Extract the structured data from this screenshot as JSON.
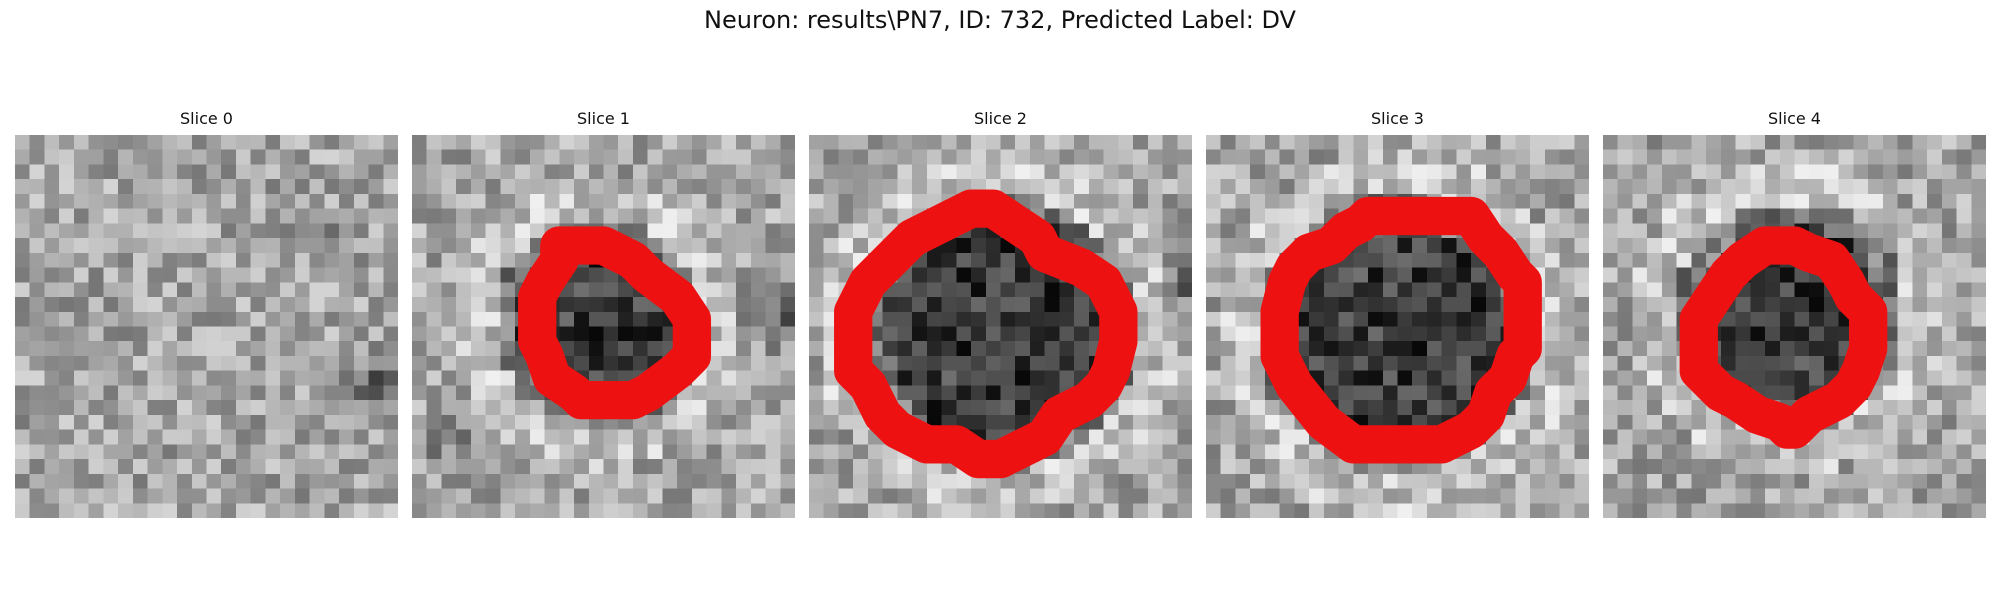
{
  "figure": {
    "title": "Neuron: results\\PN7, ID: 732, Predicted Label: DV"
  },
  "colors": {
    "contour": "#ee1111",
    "colormap": "gray"
  },
  "grid_size": 26,
  "slices": [
    {
      "title": "Slice 0",
      "has_contour": false,
      "blob": null,
      "vdark": [
        {
          "x": 20.4,
          "y": 6.6,
          "r": 1.4
        },
        {
          "x": 24.5,
          "y": 17,
          "r": 3
        }
      ],
      "contour": []
    },
    {
      "title": "Slice 1",
      "has_contour": true,
      "blob": {
        "x": 12.6,
        "y": 12.8,
        "r": 5.4
      },
      "vdark": [
        {
          "x": 25,
          "y": 12,
          "r": 3
        },
        {
          "x": 2,
          "y": 20,
          "r": 2
        }
      ],
      "contour": [
        [
          10,
          7.5
        ],
        [
          13,
          7.5
        ],
        [
          15,
          8.5
        ],
        [
          16,
          9.5
        ],
        [
          18,
          11
        ],
        [
          19,
          12.5
        ],
        [
          19,
          15
        ],
        [
          18,
          16
        ],
        [
          16,
          17.5
        ],
        [
          15,
          18
        ],
        [
          11.5,
          18
        ],
        [
          11,
          17.5
        ],
        [
          9.5,
          16.5
        ],
        [
          9,
          15
        ],
        [
          8.5,
          14
        ],
        [
          8.5,
          11
        ],
        [
          9,
          10
        ],
        [
          10,
          8.5
        ]
      ]
    },
    {
      "title": "Slice 2",
      "has_contour": true,
      "blob": {
        "x": 13,
        "y": 13.3,
        "r": 7.8
      },
      "vdark": [
        {
          "x": 25.5,
          "y": 10,
          "r": 2
        }
      ],
      "contour": [
        [
          11,
          5
        ],
        [
          12.5,
          5
        ],
        [
          14,
          6
        ],
        [
          15.5,
          7
        ],
        [
          16,
          8
        ],
        [
          18.5,
          9
        ],
        [
          20,
          10
        ],
        [
          21,
          12
        ],
        [
          21,
          14
        ],
        [
          20.5,
          16
        ],
        [
          20,
          17
        ],
        [
          19,
          18
        ],
        [
          17,
          19
        ],
        [
          16,
          20.5
        ],
        [
          15,
          21
        ],
        [
          13,
          22
        ],
        [
          11.5,
          22
        ],
        [
          10,
          21
        ],
        [
          8,
          21
        ],
        [
          6,
          20
        ],
        [
          5,
          19
        ],
        [
          4,
          17
        ],
        [
          3,
          16
        ],
        [
          3,
          12
        ],
        [
          4,
          10
        ],
        [
          5,
          9
        ],
        [
          7,
          7
        ],
        [
          9,
          6
        ]
      ]
    },
    {
      "title": "Slice 3",
      "has_contour": true,
      "blob": {
        "x": 13,
        "y": 13.5,
        "r": 7.8
      },
      "vdark": [],
      "contour": [
        [
          8.5,
          7.5
        ],
        [
          9.5,
          6.5
        ],
        [
          10.5,
          6
        ],
        [
          11,
          5.5
        ],
        [
          18,
          5.5
        ],
        [
          19,
          7
        ],
        [
          20,
          8
        ],
        [
          21,
          9.5
        ],
        [
          21.5,
          10
        ],
        [
          21.5,
          14.5
        ],
        [
          21,
          15
        ],
        [
          20.5,
          16.5
        ],
        [
          19.5,
          17.5
        ],
        [
          19,
          19
        ],
        [
          18,
          20
        ],
        [
          17,
          20.5
        ],
        [
          16,
          21
        ],
        [
          10,
          21
        ],
        [
          8,
          19.5
        ],
        [
          6,
          17
        ],
        [
          5.5,
          16
        ],
        [
          5,
          15
        ],
        [
          5,
          12
        ],
        [
          5.5,
          10
        ],
        [
          6,
          9
        ],
        [
          7,
          8
        ]
      ]
    },
    {
      "title": "Slice 4",
      "has_contour": true,
      "blob": {
        "x": 12.7,
        "y": 12.3,
        "r": 6.2
      },
      "vdark": [],
      "contour": [
        [
          11,
          7.5
        ],
        [
          13,
          7.5
        ],
        [
          14,
          8
        ],
        [
          15.5,
          8.5
        ],
        [
          16.5,
          10
        ],
        [
          17,
          11
        ],
        [
          18,
          12
        ],
        [
          18,
          14.5
        ],
        [
          17.5,
          16
        ],
        [
          17,
          17
        ],
        [
          16,
          18
        ],
        [
          15,
          18.5
        ],
        [
          14,
          19
        ],
        [
          13,
          20
        ],
        [
          12.5,
          20
        ],
        [
          12,
          19.5
        ],
        [
          10.5,
          19
        ],
        [
          9,
          18
        ],
        [
          8,
          17.5
        ],
        [
          7.5,
          17
        ],
        [
          6.5,
          16
        ],
        [
          6.5,
          12.5
        ],
        [
          7.5,
          11
        ],
        [
          8.5,
          9.5
        ],
        [
          9.5,
          8.5
        ]
      ]
    }
  ]
}
